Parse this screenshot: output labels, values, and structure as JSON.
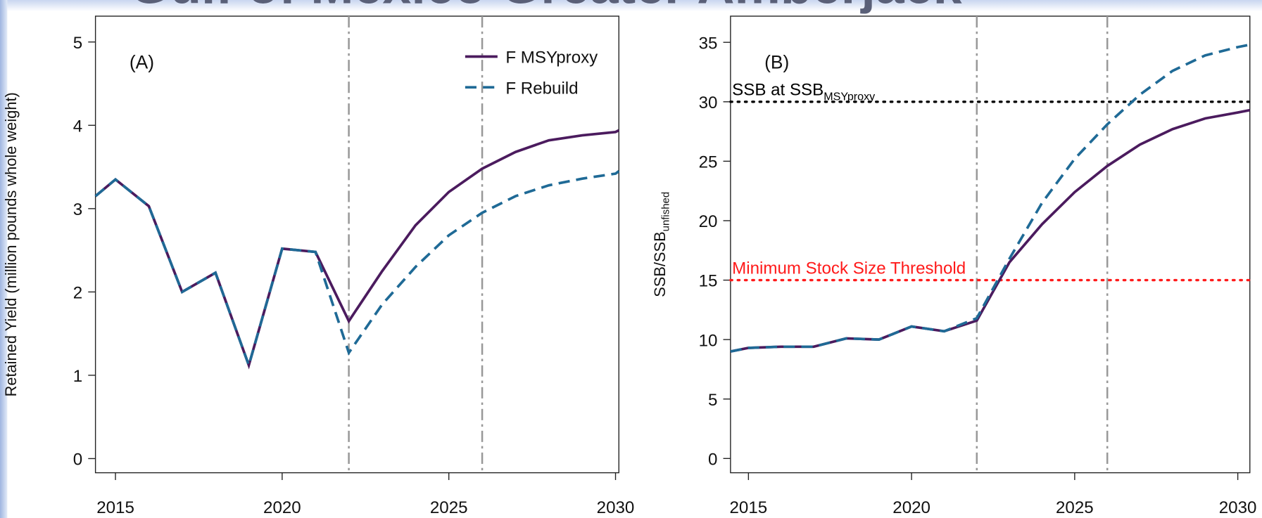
{
  "title": "Gulf of Mexico Greater Amberjack",
  "chart_data": [
    {
      "type": "line",
      "label": "(A)",
      "ylabel": "Retained Yield (million pounds whole weight)",
      "x": [
        2014.4,
        2015,
        2016,
        2017,
        2018,
        2019,
        2020,
        2021,
        2022,
        2023,
        2024,
        2025,
        2026,
        2027,
        2028,
        2029,
        2030,
        2030.1
      ],
      "series": [
        {
          "name": "F MSYproxy",
          "color": "#4b1b5e",
          "dash": "solid",
          "values": [
            3.15,
            3.35,
            3.03,
            2.0,
            2.23,
            1.12,
            2.52,
            2.48,
            1.65,
            2.25,
            2.8,
            3.2,
            3.48,
            3.68,
            3.82,
            3.88,
            3.92,
            3.94
          ]
        },
        {
          "name": "F Rebuild",
          "color": "#1f6a96",
          "dash": "dashed",
          "values": [
            3.15,
            3.35,
            3.03,
            2.0,
            2.23,
            1.12,
            2.52,
            2.48,
            1.27,
            1.85,
            2.3,
            2.68,
            2.95,
            3.15,
            3.28,
            3.36,
            3.42,
            3.45
          ]
        }
      ],
      "xlim": [
        2014.4,
        2030.1
      ],
      "ylim": [
        -0.17,
        5.31
      ],
      "xticks": [
        2015,
        2020,
        2025,
        2030
      ],
      "yticks": [
        0,
        1,
        2,
        3,
        4,
        5
      ],
      "vlines": [
        2022,
        2026
      ],
      "legend": "upper right"
    },
    {
      "type": "line",
      "label": "(B)",
      "ylabel": "SSB/SSB",
      "ylabel_sub": "unfished",
      "x": [
        2014.45,
        2015,
        2016,
        2017,
        2018,
        2019,
        2020,
        2021,
        2022,
        2023,
        2024,
        2025,
        2026,
        2027,
        2028,
        2029,
        2030,
        2030.37
      ],
      "series": [
        {
          "color": "#4b1b5e",
          "dash": "solid",
          "values": [
            9.0,
            9.3,
            9.4,
            9.4,
            10.1,
            10.0,
            11.1,
            10.7,
            11.6,
            16.5,
            19.7,
            22.4,
            24.6,
            26.4,
            27.7,
            28.6,
            29.1,
            29.3
          ]
        },
        {
          "color": "#1f6a96",
          "dash": "dashed",
          "values": [
            9.0,
            9.3,
            9.4,
            9.4,
            10.1,
            10.0,
            11.1,
            10.7,
            11.8,
            16.8,
            21.5,
            25.2,
            28.1,
            30.6,
            32.6,
            33.9,
            34.6,
            34.8
          ]
        }
      ],
      "xlim": [
        2014.45,
        2030.37
      ],
      "ylim": [
        -1.2,
        37.2
      ],
      "xticks": [
        2015,
        2020,
        2025,
        2030
      ],
      "yticks": [
        0,
        5,
        10,
        15,
        20,
        25,
        30,
        35
      ],
      "vlines": [
        2022,
        2026
      ],
      "hlines": [
        {
          "value": 30,
          "label": "SSB at SSB",
          "label_sub": "MSYproxy",
          "color": "#000000"
        },
        {
          "value": 15,
          "label": "Minimum Stock Size Threshold",
          "color": "#ff1a1a"
        }
      ]
    }
  ]
}
